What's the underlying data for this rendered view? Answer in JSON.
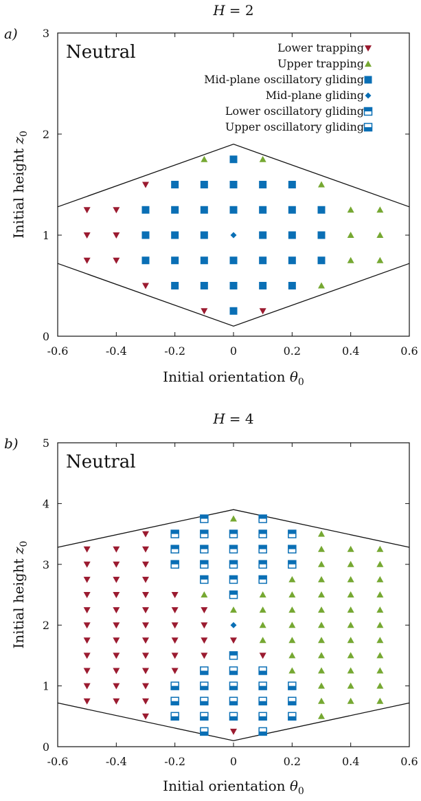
{
  "chart_data": [
    {
      "type": "scatter",
      "panel_label": "a)",
      "title": "H = 2",
      "title_var": "H",
      "title_val": "= 2",
      "annotation": "Neutral",
      "xlabel": "Initial orientation θ",
      "xlabel_text": "Initial orientation ",
      "xlabel_var": "θ",
      "xlabel_sub": "0",
      "ylabel": "Initial height z0",
      "ylabel_text": "Initial height ",
      "ylabel_var": "z",
      "ylabel_sub": "0",
      "xlim": [
        -0.6,
        0.6
      ],
      "ylim": [
        0,
        3
      ],
      "xticks": [
        -0.6,
        -0.4,
        -0.2,
        0,
        0.2,
        0.4,
        0.6
      ],
      "xtick_labels": [
        "-0.6",
        "-0.4",
        "-0.2",
        "0",
        "0.2",
        "0.4",
        "0.6"
      ],
      "yticks": [
        0,
        1,
        2,
        3
      ],
      "ytick_labels": [
        "0",
        "1",
        "2",
        "3"
      ],
      "grid": false,
      "legend_position": "top-right",
      "boundary": {
        "upper": [
          [
            -0.6,
            1.28
          ],
          [
            0,
            1.9
          ],
          [
            0.6,
            1.28
          ]
        ],
        "lower": [
          [
            -0.6,
            0.72
          ],
          [
            0,
            0.1
          ],
          [
            0.6,
            0.72
          ]
        ]
      },
      "series": [
        {
          "name": "Lower trapping",
          "marker": "triangle-down",
          "color": "#9b1b30",
          "points": [
            [
              -0.5,
              1.25
            ],
            [
              -0.4,
              1.25
            ],
            [
              -0.5,
              1.0
            ],
            [
              -0.4,
              1.0
            ],
            [
              -0.5,
              0.75
            ],
            [
              -0.4,
              0.75
            ],
            [
              -0.3,
              1.5
            ],
            [
              -0.3,
              0.5
            ],
            [
              -0.1,
              0.25
            ],
            [
              0.1,
              0.25
            ]
          ]
        },
        {
          "name": "Upper trapping",
          "marker": "triangle-up",
          "color": "#76a832",
          "points": [
            [
              -0.1,
              1.75
            ],
            [
              0.1,
              1.75
            ],
            [
              0.3,
              1.5
            ],
            [
              0.4,
              1.25
            ],
            [
              0.5,
              1.25
            ],
            [
              0.4,
              1.0
            ],
            [
              0.5,
              1.0
            ],
            [
              0.4,
              0.75
            ],
            [
              0.5,
              0.75
            ],
            [
              0.3,
              0.5
            ]
          ]
        },
        {
          "name": "Mid-plane oscillatory gliding",
          "marker": "square",
          "color": "#0a6fb5",
          "points": [
            [
              0,
              1.75
            ],
            [
              -0.2,
              1.5
            ],
            [
              -0.1,
              1.5
            ],
            [
              0,
              1.5
            ],
            [
              0.1,
              1.5
            ],
            [
              0.2,
              1.5
            ],
            [
              -0.3,
              1.25
            ],
            [
              -0.2,
              1.25
            ],
            [
              -0.1,
              1.25
            ],
            [
              0,
              1.25
            ],
            [
              0.1,
              1.25
            ],
            [
              0.2,
              1.25
            ],
            [
              0.3,
              1.25
            ],
            [
              -0.3,
              1.0
            ],
            [
              -0.2,
              1.0
            ],
            [
              -0.1,
              1.0
            ],
            [
              0.1,
              1.0
            ],
            [
              0.2,
              1.0
            ],
            [
              0.3,
              1.0
            ],
            [
              -0.3,
              0.75
            ],
            [
              -0.2,
              0.75
            ],
            [
              -0.1,
              0.75
            ],
            [
              0,
              0.75
            ],
            [
              0.1,
              0.75
            ],
            [
              0.2,
              0.75
            ],
            [
              0.3,
              0.75
            ],
            [
              -0.2,
              0.5
            ],
            [
              -0.1,
              0.5
            ],
            [
              0,
              0.5
            ],
            [
              0.1,
              0.5
            ],
            [
              0.2,
              0.5
            ],
            [
              0,
              0.25
            ]
          ]
        },
        {
          "name": "Mid-plane gliding",
          "marker": "diamond",
          "color": "#0a6fb5",
          "points": [
            [
              0,
              1.0
            ]
          ]
        },
        {
          "name": "Lower oscillatory gliding",
          "marker": "square-half-top",
          "color": "#0a6fb5",
          "points": []
        },
        {
          "name": "Upper oscillatory gliding",
          "marker": "square-half-bottom",
          "color": "#0a6fb5",
          "points": []
        }
      ]
    },
    {
      "type": "scatter",
      "panel_label": "b)",
      "title": "H = 4",
      "title_var": "H",
      "title_val": "= 4",
      "annotation": "Neutral",
      "xlabel": "Initial orientation θ",
      "xlabel_text": "Initial orientation ",
      "xlabel_var": "θ",
      "xlabel_sub": "0",
      "ylabel": "Initial height z0",
      "ylabel_text": "Initial height ",
      "ylabel_var": "z",
      "ylabel_sub": "0",
      "xlim": [
        -0.6,
        0.6
      ],
      "ylim": [
        0,
        5
      ],
      "xticks": [
        -0.6,
        -0.4,
        -0.2,
        0,
        0.2,
        0.4,
        0.6
      ],
      "xtick_labels": [
        "-0.6",
        "-0.4",
        "-0.2",
        "0",
        "0.2",
        "0.4",
        "0.6"
      ],
      "yticks": [
        0,
        1,
        2,
        3,
        4,
        5
      ],
      "ytick_labels": [
        "0",
        "1",
        "2",
        "3",
        "4",
        "5"
      ],
      "grid": false,
      "boundary": {
        "upper": [
          [
            -0.6,
            3.28
          ],
          [
            0,
            3.9
          ],
          [
            0.6,
            3.28
          ]
        ],
        "lower": [
          [
            -0.6,
            0.72
          ],
          [
            0,
            0.1
          ],
          [
            0.6,
            0.72
          ]
        ]
      },
      "series": [
        {
          "name": "Lower trapping",
          "marker": "triangle-down",
          "color": "#9b1b30",
          "points": [
            [
              -0.5,
              3.25
            ],
            [
              -0.5,
              3.0
            ],
            [
              -0.5,
              2.75
            ],
            [
              -0.5,
              2.5
            ],
            [
              -0.5,
              2.25
            ],
            [
              -0.5,
              2.0
            ],
            [
              -0.5,
              1.75
            ],
            [
              -0.5,
              1.5
            ],
            [
              -0.5,
              1.25
            ],
            [
              -0.5,
              1.0
            ],
            [
              -0.5,
              0.75
            ],
            [
              -0.4,
              3.25
            ],
            [
              -0.4,
              3.0
            ],
            [
              -0.4,
              2.75
            ],
            [
              -0.4,
              2.5
            ],
            [
              -0.4,
              2.25
            ],
            [
              -0.4,
              2.0
            ],
            [
              -0.4,
              1.75
            ],
            [
              -0.4,
              1.5
            ],
            [
              -0.4,
              1.25
            ],
            [
              -0.4,
              1.0
            ],
            [
              -0.4,
              0.75
            ],
            [
              -0.3,
              3.5
            ],
            [
              -0.3,
              3.25
            ],
            [
              -0.3,
              3.0
            ],
            [
              -0.3,
              2.75
            ],
            [
              -0.3,
              2.5
            ],
            [
              -0.3,
              2.25
            ],
            [
              -0.3,
              2.0
            ],
            [
              -0.3,
              1.75
            ],
            [
              -0.3,
              1.5
            ],
            [
              -0.3,
              1.25
            ],
            [
              -0.3,
              1.0
            ],
            [
              -0.3,
              0.75
            ],
            [
              -0.3,
              0.5
            ],
            [
              -0.2,
              2.5
            ],
            [
              -0.2,
              2.25
            ],
            [
              -0.2,
              2.0
            ],
            [
              -0.2,
              1.75
            ],
            [
              -0.2,
              1.5
            ],
            [
              -0.2,
              1.25
            ],
            [
              -0.1,
              2.25
            ],
            [
              -0.1,
              2.0
            ],
            [
              -0.1,
              1.75
            ],
            [
              -0.1,
              1.5
            ],
            [
              0,
              1.75
            ],
            [
              0,
              0.25
            ],
            [
              0.1,
              1.5
            ]
          ]
        },
        {
          "name": "Upper trapping",
          "marker": "triangle-up",
          "color": "#76a832",
          "points": [
            [
              0,
              3.75
            ],
            [
              -0.1,
              2.5
            ],
            [
              0,
              2.25
            ],
            [
              0,
              2.5
            ],
            [
              0.1,
              2.75
            ],
            [
              0.1,
              2.5
            ],
            [
              0.1,
              2.25
            ],
            [
              0.1,
              2.0
            ],
            [
              0.1,
              1.75
            ],
            [
              0.2,
              2.75
            ],
            [
              0.2,
              2.5
            ],
            [
              0.2,
              2.25
            ],
            [
              0.2,
              2.0
            ],
            [
              0.2,
              1.75
            ],
            [
              0.2,
              1.5
            ],
            [
              0.2,
              1.25
            ],
            [
              0.3,
              3.5
            ],
            [
              0.3,
              3.25
            ],
            [
              0.3,
              3.0
            ],
            [
              0.3,
              2.75
            ],
            [
              0.3,
              2.5
            ],
            [
              0.3,
              2.25
            ],
            [
              0.3,
              2.0
            ],
            [
              0.3,
              1.75
            ],
            [
              0.3,
              1.5
            ],
            [
              0.3,
              1.25
            ],
            [
              0.3,
              1.0
            ],
            [
              0.3,
              0.75
            ],
            [
              0.3,
              0.5
            ],
            [
              0.4,
              3.25
            ],
            [
              0.4,
              3.0
            ],
            [
              0.4,
              2.75
            ],
            [
              0.4,
              2.5
            ],
            [
              0.4,
              2.25
            ],
            [
              0.4,
              2.0
            ],
            [
              0.4,
              1.75
            ],
            [
              0.4,
              1.5
            ],
            [
              0.4,
              1.25
            ],
            [
              0.4,
              1.0
            ],
            [
              0.4,
              0.75
            ],
            [
              0.5,
              3.25
            ],
            [
              0.5,
              3.0
            ],
            [
              0.5,
              2.75
            ],
            [
              0.5,
              2.5
            ],
            [
              0.5,
              2.25
            ],
            [
              0.5,
              2.0
            ],
            [
              0.5,
              1.75
            ],
            [
              0.5,
              1.5
            ],
            [
              0.5,
              1.25
            ],
            [
              0.5,
              1.0
            ],
            [
              0.5,
              0.75
            ]
          ]
        },
        {
          "name": "Mid-plane oscillatory gliding",
          "marker": "square",
          "color": "#0a6fb5",
          "points": []
        },
        {
          "name": "Mid-plane gliding",
          "marker": "diamond",
          "color": "#0a6fb5",
          "points": [
            [
              0,
              2.0
            ]
          ]
        },
        {
          "name": "Lower oscillatory gliding",
          "marker": "square-half-top",
          "color": "#0a6fb5",
          "points": [
            [
              -0.1,
              3.75
            ],
            [
              0.1,
              3.75
            ],
            [
              -0.2,
              3.5
            ],
            [
              -0.1,
              3.5
            ],
            [
              0,
              3.5
            ],
            [
              0.1,
              3.5
            ],
            [
              0.2,
              3.5
            ],
            [
              -0.2,
              3.25
            ],
            [
              -0.1,
              3.25
            ],
            [
              0,
              3.25
            ],
            [
              0.1,
              3.25
            ],
            [
              0.2,
              3.25
            ],
            [
              -0.2,
              3.0
            ],
            [
              -0.1,
              3.0
            ],
            [
              0,
              3.0
            ],
            [
              0.1,
              3.0
            ],
            [
              0.2,
              3.0
            ],
            [
              -0.1,
              2.75
            ],
            [
              0,
              2.75
            ],
            [
              0.1,
              2.75
            ],
            [
              0,
              2.5
            ],
            [
              0,
              1.5
            ]
          ]
        },
        {
          "name": "Upper oscillatory gliding",
          "marker": "square-half-bottom",
          "color": "#0a6fb5",
          "points": [
            [
              -0.1,
              1.25
            ],
            [
              0,
              1.25
            ],
            [
              0.1,
              1.25
            ],
            [
              -0.2,
              1.0
            ],
            [
              -0.1,
              1.0
            ],
            [
              0,
              1.0
            ],
            [
              0.1,
              1.0
            ],
            [
              0.2,
              1.0
            ],
            [
              -0.2,
              0.75
            ],
            [
              -0.1,
              0.75
            ],
            [
              0,
              0.75
            ],
            [
              0.1,
              0.75
            ],
            [
              0.2,
              0.75
            ],
            [
              -0.2,
              0.5
            ],
            [
              -0.1,
              0.5
            ],
            [
              0,
              0.5
            ],
            [
              0.1,
              0.5
            ],
            [
              0.2,
              0.5
            ],
            [
              -0.1,
              0.25
            ],
            [
              0.1,
              0.25
            ]
          ]
        }
      ]
    }
  ]
}
